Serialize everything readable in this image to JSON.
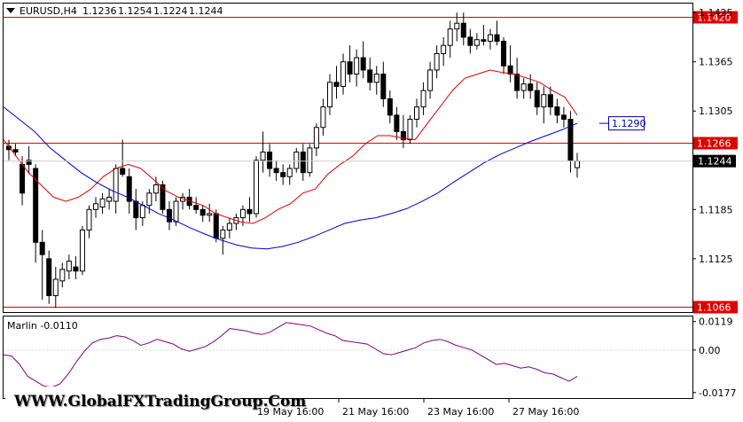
{
  "chart_data": [
    {
      "type": "candlestick",
      "title": "EURUSD,H4",
      "ohlc_header": [
        "1.1236",
        "1.1254",
        "1.1224",
        "1.1244"
      ],
      "ylim": [
        1.106,
        1.1436
      ],
      "y_ticks": [
        "1.1425",
        "1.1365",
        "1.1305",
        "1.1245",
        "1.1185",
        "1.1125"
      ],
      "last_price": "1.1244",
      "horizontal_levels": [
        {
          "value": 1.142,
          "label": "1.1420",
          "color": "#e00000"
        },
        {
          "value": 1.1266,
          "label": "1.1266",
          "color": "#e00000"
        },
        {
          "value": 1.1066,
          "label": "1.1066",
          "color": "#e00000"
        }
      ],
      "blue_line_label": {
        "value": 1.129,
        "label": "1.1290",
        "color": "#0000aa"
      },
      "x_tick_labels": [
        "19 May 16:00",
        "21 May 16:00",
        "23 May 16:00",
        "27 May 16:00"
      ],
      "candles": [
        [
          1.1262,
          1.127,
          1.1245,
          1.1258
        ],
        [
          1.1258,
          1.1265,
          1.125,
          1.1255
        ],
        [
          1.124,
          1.125,
          1.119,
          1.1205
        ],
        [
          1.1245,
          1.1262,
          1.1228,
          1.124
        ],
        [
          1.1235,
          1.124,
          1.112,
          1.1145
        ],
        [
          1.1145,
          1.116,
          1.1075,
          1.113
        ],
        [
          1.1125,
          1.1135,
          1.107,
          1.108
        ],
        [
          1.108,
          1.1115,
          1.1065,
          1.11
        ],
        [
          1.1098,
          1.112,
          1.109,
          1.1112
        ],
        [
          1.111,
          1.113,
          1.11,
          1.1122
        ],
        [
          1.1115,
          1.1128,
          1.11,
          1.111
        ],
        [
          1.111,
          1.1165,
          1.1105,
          1.116
        ],
        [
          1.116,
          1.119,
          1.115,
          1.1185
        ],
        [
          1.1185,
          1.12,
          1.1175,
          1.1192
        ],
        [
          1.1188,
          1.1205,
          1.118,
          1.1198
        ],
        [
          1.1195,
          1.121,
          1.1185,
          1.12
        ],
        [
          1.1195,
          1.124,
          1.118,
          1.1235
        ],
        [
          1.1235,
          1.127,
          1.1225,
          1.1228
        ],
        [
          1.1225,
          1.1235,
          1.118,
          1.1195
        ],
        [
          1.1195,
          1.121,
          1.116,
          1.1175
        ],
        [
          1.1175,
          1.1195,
          1.1165,
          1.119
        ],
        [
          1.119,
          1.121,
          1.118,
          1.1205
        ],
        [
          1.1205,
          1.1225,
          1.1195,
          1.1215
        ],
        [
          1.1215,
          1.122,
          1.118,
          1.1185
        ],
        [
          1.1185,
          1.1195,
          1.116,
          1.117
        ],
        [
          1.117,
          1.12,
          1.1165,
          1.1195
        ],
        [
          1.1195,
          1.1205,
          1.1185,
          1.12
        ],
        [
          1.12,
          1.121,
          1.1185,
          1.119
        ],
        [
          1.119,
          1.12,
          1.118,
          1.1185
        ],
        [
          1.1185,
          1.119,
          1.117,
          1.1178
        ],
        [
          1.1178,
          1.1192,
          1.117,
          1.118
        ],
        [
          1.118,
          1.1185,
          1.1145,
          1.115
        ],
        [
          1.115,
          1.1165,
          1.113,
          1.116
        ],
        [
          1.116,
          1.1175,
          1.115,
          1.1168
        ],
        [
          1.1168,
          1.118,
          1.116,
          1.1175
        ],
        [
          1.1175,
          1.119,
          1.1165,
          1.1185
        ],
        [
          1.1185,
          1.12,
          1.117,
          1.118
        ],
        [
          1.118,
          1.125,
          1.1175,
          1.1245
        ],
        [
          1.1245,
          1.128,
          1.123,
          1.1255
        ],
        [
          1.1255,
          1.1265,
          1.1225,
          1.1235
        ],
        [
          1.1235,
          1.1245,
          1.122,
          1.123
        ],
        [
          1.123,
          1.124,
          1.1215,
          1.1225
        ],
        [
          1.1225,
          1.124,
          1.1215,
          1.1235
        ],
        [
          1.1235,
          1.126,
          1.123,
          1.1255
        ],
        [
          1.1255,
          1.1265,
          1.122,
          1.123
        ],
        [
          1.123,
          1.1265,
          1.1225,
          1.126
        ],
        [
          1.126,
          1.129,
          1.125,
          1.1285
        ],
        [
          1.1285,
          1.132,
          1.1275,
          1.131
        ],
        [
          1.131,
          1.135,
          1.13,
          1.134
        ],
        [
          1.134,
          1.136,
          1.132,
          1.1335
        ],
        [
          1.1335,
          1.1375,
          1.1325,
          1.1365
        ],
        [
          1.1365,
          1.1385,
          1.134,
          1.135
        ],
        [
          1.135,
          1.138,
          1.1335,
          1.137
        ],
        [
          1.137,
          1.139,
          1.1345,
          1.1355
        ],
        [
          1.1355,
          1.137,
          1.133,
          1.134
        ],
        [
          1.134,
          1.136,
          1.1325,
          1.135
        ],
        [
          1.135,
          1.1365,
          1.131,
          1.132
        ],
        [
          1.132,
          1.133,
          1.129,
          1.13
        ],
        [
          1.13,
          1.131,
          1.127,
          1.128
        ],
        [
          1.128,
          1.13,
          1.126,
          1.127
        ],
        [
          1.127,
          1.13,
          1.1265,
          1.1295
        ],
        [
          1.1295,
          1.132,
          1.1285,
          1.131
        ],
        [
          1.131,
          1.134,
          1.13,
          1.133
        ],
        [
          1.133,
          1.1365,
          1.132,
          1.1355
        ],
        [
          1.1355,
          1.1385,
          1.1345,
          1.1375
        ],
        [
          1.1375,
          1.1395,
          1.136,
          1.1385
        ],
        [
          1.1385,
          1.1415,
          1.137,
          1.1405
        ],
        [
          1.1405,
          1.1425,
          1.139,
          1.1412
        ],
        [
          1.1412,
          1.1425,
          1.1385,
          1.1395
        ],
        [
          1.1395,
          1.1405,
          1.1375,
          1.1385
        ],
        [
          1.1385,
          1.14,
          1.138,
          1.1392
        ],
        [
          1.1392,
          1.141,
          1.1385,
          1.139
        ],
        [
          1.139,
          1.1405,
          1.138,
          1.1398
        ],
        [
          1.1398,
          1.1415,
          1.1385,
          1.139
        ],
        [
          1.139,
          1.1395,
          1.135,
          1.136
        ],
        [
          1.136,
          1.1385,
          1.134,
          1.135
        ],
        [
          1.135,
          1.137,
          1.132,
          1.133
        ],
        [
          1.133,
          1.1345,
          1.132,
          1.1338
        ],
        [
          1.1338,
          1.135,
          1.132,
          1.133
        ],
        [
          1.133,
          1.134,
          1.13,
          1.131
        ],
        [
          1.131,
          1.1335,
          1.129,
          1.1325
        ],
        [
          1.1325,
          1.1335,
          1.13,
          1.131
        ],
        [
          1.131,
          1.132,
          1.129,
          1.13
        ],
        [
          1.13,
          1.131,
          1.1285,
          1.1295
        ],
        [
          1.1295,
          1.1305,
          1.123,
          1.1245
        ],
        [
          1.1236,
          1.1254,
          1.1224,
          1.1244
        ]
      ],
      "series": [
        {
          "color": "#e00000",
          "values": [
            1.127,
            1.125,
            1.123,
            1.1215,
            1.12,
            1.1195,
            1.12,
            1.121,
            1.1225,
            1.1235,
            1.124,
            1.1235,
            1.1222,
            1.1208,
            1.12,
            1.1195,
            1.119,
            1.118,
            1.1175,
            1.117,
            1.1168,
            1.1175,
            1.1185,
            1.1192,
            1.1205,
            1.121,
            1.1228,
            1.124,
            1.125,
            1.1265,
            1.1275,
            1.1275,
            1.1272,
            1.127,
            1.129,
            1.131,
            1.133,
            1.1345,
            1.135,
            1.1355,
            1.1352,
            1.135,
            1.1345,
            1.134,
            1.133,
            1.1322,
            1.13
          ]
        },
        {
          "color": "#0000cc",
          "values": [
            1.131,
            1.1295,
            1.128,
            1.126,
            1.1245,
            1.123,
            1.1218,
            1.1208,
            1.12,
            1.119,
            1.118,
            1.1172,
            1.1163,
            1.1155,
            1.1148,
            1.1142,
            1.1138,
            1.1137,
            1.114,
            1.1145,
            1.1152,
            1.116,
            1.1168,
            1.1172,
            1.1175,
            1.118,
            1.1186,
            1.1195,
            1.1205,
            1.1218,
            1.123,
            1.1242,
            1.1252,
            1.126,
            1.1268,
            1.1275,
            1.1282,
            1.129
          ]
        }
      ]
    },
    {
      "type": "line",
      "title": "Marlin -0.0110",
      "ylim": [
        -0.02,
        0.014
      ],
      "y_ticks": [
        "0.0119",
        "0.00",
        "-0.0177"
      ],
      "series": [
        {
          "color": "#800080",
          "values": [
            -0.002,
            -0.0025,
            -0.006,
            -0.011,
            -0.013,
            -0.015,
            -0.0155,
            -0.014,
            -0.01,
            -0.005,
            -0.0005,
            0.003,
            0.0045,
            0.005,
            0.006,
            0.0055,
            0.004,
            0.002,
            0.003,
            0.0045,
            0.0035,
            0.0025,
            0.0005,
            -0.0005,
            0.0005,
            0.0015,
            0.0035,
            0.006,
            0.009,
            0.0085,
            0.008,
            0.007,
            0.0065,
            0.0075,
            0.0095,
            0.0115,
            0.011,
            0.0105,
            0.01,
            0.0085,
            0.007,
            0.006,
            0.004,
            0.0035,
            0.003,
            0.0025,
            0.0005,
            -0.0015,
            -0.002,
            -0.001,
            0.0,
            0.001,
            0.003,
            0.004,
            0.0045,
            0.0035,
            0.002,
            0.001,
            0.0,
            -0.002,
            -0.004,
            -0.006,
            -0.0055,
            -0.0065,
            -0.0075,
            -0.007,
            -0.008,
            -0.0095,
            -0.01,
            -0.0115,
            -0.013,
            -0.011
          ]
        }
      ]
    }
  ],
  "watermark": "WWW.GlobalFXTradingGroup.Com"
}
